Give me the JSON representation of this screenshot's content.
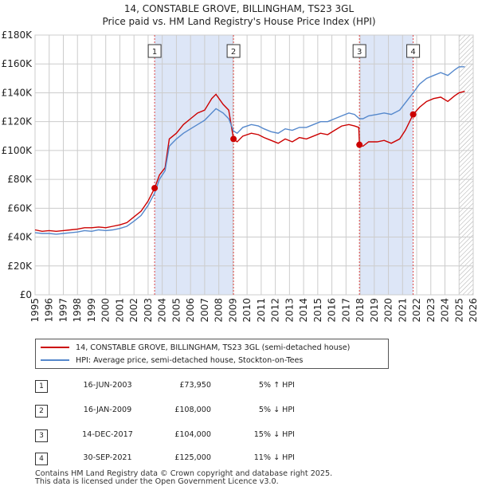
{
  "title_line1": "14, CONSTABLE GROVE, BILLINGHAM, TS23 3GL",
  "title_line2": "Price paid vs. HM Land Registry's House Price Index (HPI)",
  "colors": {
    "property": "#cc0000",
    "hpi": "#5588cc",
    "shade": "#dde6f7",
    "grid": "#cccccc"
  },
  "legend": {
    "property": "14, CONSTABLE GROVE, BILLINGHAM, TS23 3GL (semi-detached house)",
    "hpi": "HPI: Average price, semi-detached house, Stockton-on-Tees"
  },
  "sales": [
    {
      "num": "1",
      "date": "16-JUN-2003",
      "price": "£73,950",
      "hpi": "5% ↑ HPI"
    },
    {
      "num": "2",
      "date": "16-JAN-2009",
      "price": "£108,000",
      "hpi": "5% ↓ HPI"
    },
    {
      "num": "3",
      "date": "14-DEC-2017",
      "price": "£104,000",
      "hpi": "15% ↓ HPI"
    },
    {
      "num": "4",
      "date": "30-SEP-2021",
      "price": "£125,000",
      "hpi": "11% ↓ HPI"
    }
  ],
  "footer": {
    "line1": "Contains HM Land Registry data © Crown copyright and database right 2025.",
    "line2": "This data is licensed under the Open Government Licence v3.0."
  },
  "chart_data": {
    "type": "line",
    "title": "Price paid vs. HM Land Registry's House Price Index (HPI)",
    "xlabel": "",
    "ylabel": "",
    "xlim": [
      1995,
      2026
    ],
    "ylim": [
      0,
      180000
    ],
    "y_ticks": [
      {
        "value": 0,
        "label": "£0"
      },
      {
        "value": 20000,
        "label": "£20K"
      },
      {
        "value": 40000,
        "label": "£40K"
      },
      {
        "value": 60000,
        "label": "£60K"
      },
      {
        "value": 80000,
        "label": "£80K"
      },
      {
        "value": 100000,
        "label": "£100K"
      },
      {
        "value": 120000,
        "label": "£120K"
      },
      {
        "value": 140000,
        "label": "£140K"
      },
      {
        "value": 160000,
        "label": "£160K"
      },
      {
        "value": 180000,
        "label": "£180K"
      }
    ],
    "x_ticks": [
      "1995",
      "1996",
      "1997",
      "1998",
      "1999",
      "2000",
      "2001",
      "2002",
      "2003",
      "2004",
      "2005",
      "2006",
      "2007",
      "2008",
      "2009",
      "2010",
      "2011",
      "2012",
      "2013",
      "2014",
      "2015",
      "2016",
      "2017",
      "2018",
      "2019",
      "2020",
      "2021",
      "2022",
      "2023",
      "2024",
      "2025",
      "2026"
    ],
    "shaded_periods": [
      [
        2003.46,
        2009.04
      ],
      [
        2017.95,
        2021.75
      ]
    ],
    "hatched_from": 2025.0,
    "series": [
      {
        "name": "14, CONSTABLE GROVE, BILLINGHAM, TS23 3GL (semi-detached house)",
        "key": "property",
        "points": [
          [
            1995.0,
            45000
          ],
          [
            1995.5,
            44000
          ],
          [
            1996.0,
            44500
          ],
          [
            1996.5,
            44000
          ],
          [
            1997.0,
            44500
          ],
          [
            1997.5,
            45000
          ],
          [
            1998.0,
            45500
          ],
          [
            1998.5,
            46500
          ],
          [
            1999.0,
            46500
          ],
          [
            1999.5,
            47000
          ],
          [
            2000.0,
            46500
          ],
          [
            2000.5,
            47500
          ],
          [
            2001.0,
            48500
          ],
          [
            2001.5,
            50000
          ],
          [
            2002.0,
            54000
          ],
          [
            2002.5,
            58000
          ],
          [
            2003.0,
            65000
          ],
          [
            2003.46,
            73950
          ],
          [
            2003.8,
            83000
          ],
          [
            2004.2,
            88000
          ],
          [
            2004.5,
            108000
          ],
          [
            2005.0,
            112000
          ],
          [
            2005.5,
            118000
          ],
          [
            2006.0,
            122000
          ],
          [
            2006.5,
            126000
          ],
          [
            2007.0,
            128000
          ],
          [
            2007.5,
            136000
          ],
          [
            2007.8,
            139000
          ],
          [
            2008.3,
            132000
          ],
          [
            2008.7,
            128000
          ],
          [
            2009.04,
            108000
          ],
          [
            2009.3,
            106000
          ],
          [
            2009.7,
            110000
          ],
          [
            2010.3,
            112000
          ],
          [
            2010.8,
            111000
          ],
          [
            2011.2,
            109000
          ],
          [
            2011.7,
            107000
          ],
          [
            2012.2,
            105000
          ],
          [
            2012.7,
            108000
          ],
          [
            2013.2,
            106000
          ],
          [
            2013.7,
            109000
          ],
          [
            2014.2,
            108000
          ],
          [
            2014.7,
            110000
          ],
          [
            2015.2,
            112000
          ],
          [
            2015.7,
            111000
          ],
          [
            2016.2,
            114000
          ],
          [
            2016.7,
            117000
          ],
          [
            2017.2,
            118000
          ],
          [
            2017.6,
            117000
          ],
          [
            2017.9,
            116000
          ],
          [
            2017.95,
            104000
          ],
          [
            2018.2,
            103000
          ],
          [
            2018.6,
            106000
          ],
          [
            2019.2,
            106000
          ],
          [
            2019.7,
            107000
          ],
          [
            2020.2,
            105000
          ],
          [
            2020.8,
            108000
          ],
          [
            2021.2,
            114000
          ],
          [
            2021.75,
            125000
          ],
          [
            2022.2,
            130000
          ],
          [
            2022.7,
            134000
          ],
          [
            2023.2,
            136000
          ],
          [
            2023.7,
            137000
          ],
          [
            2024.2,
            134000
          ],
          [
            2024.7,
            138000
          ],
          [
            2025.0,
            140000
          ],
          [
            2025.4,
            141000
          ]
        ]
      },
      {
        "name": "HPI: Average price, semi-detached house, Stockton-on-Tees",
        "key": "hpi",
        "points": [
          [
            1995.0,
            43000
          ],
          [
            1995.5,
            42500
          ],
          [
            1996.0,
            42500
          ],
          [
            1996.5,
            42000
          ],
          [
            1997.0,
            42500
          ],
          [
            1997.5,
            43000
          ],
          [
            1998.0,
            43500
          ],
          [
            1998.5,
            44500
          ],
          [
            1999.0,
            44000
          ],
          [
            1999.5,
            45000
          ],
          [
            2000.0,
            44500
          ],
          [
            2000.5,
            45000
          ],
          [
            2001.0,
            46000
          ],
          [
            2001.5,
            47500
          ],
          [
            2002.0,
            51000
          ],
          [
            2002.5,
            55000
          ],
          [
            2003.0,
            62000
          ],
          [
            2003.46,
            70500
          ],
          [
            2003.8,
            80000
          ],
          [
            2004.2,
            86000
          ],
          [
            2004.5,
            103000
          ],
          [
            2005.0,
            108000
          ],
          [
            2005.5,
            112000
          ],
          [
            2006.0,
            115000
          ],
          [
            2006.5,
            118000
          ],
          [
            2007.0,
            121000
          ],
          [
            2007.5,
            126000
          ],
          [
            2007.8,
            129000
          ],
          [
            2008.3,
            126000
          ],
          [
            2008.7,
            122000
          ],
          [
            2009.04,
            113500
          ],
          [
            2009.3,
            112000
          ],
          [
            2009.7,
            116000
          ],
          [
            2010.3,
            118000
          ],
          [
            2010.8,
            117000
          ],
          [
            2011.2,
            115000
          ],
          [
            2011.7,
            113000
          ],
          [
            2012.2,
            112000
          ],
          [
            2012.7,
            115000
          ],
          [
            2013.2,
            114000
          ],
          [
            2013.7,
            116000
          ],
          [
            2014.2,
            116000
          ],
          [
            2014.7,
            118000
          ],
          [
            2015.2,
            120000
          ],
          [
            2015.7,
            120000
          ],
          [
            2016.2,
            122000
          ],
          [
            2016.7,
            124000
          ],
          [
            2017.2,
            126000
          ],
          [
            2017.6,
            125000
          ],
          [
            2017.95,
            122000
          ],
          [
            2018.2,
            122000
          ],
          [
            2018.6,
            124000
          ],
          [
            2019.2,
            125000
          ],
          [
            2019.7,
            126000
          ],
          [
            2020.2,
            125000
          ],
          [
            2020.8,
            128000
          ],
          [
            2021.2,
            133000
          ],
          [
            2021.75,
            140000
          ],
          [
            2022.2,
            146000
          ],
          [
            2022.7,
            150000
          ],
          [
            2023.2,
            152000
          ],
          [
            2023.7,
            154000
          ],
          [
            2024.2,
            152000
          ],
          [
            2024.7,
            156000
          ],
          [
            2025.0,
            158000
          ],
          [
            2025.4,
            158000
          ]
        ]
      }
    ],
    "sale_markers": [
      {
        "num": "1",
        "x": 2003.46,
        "y": 73950
      },
      {
        "num": "2",
        "x": 2009.04,
        "y": 108000
      },
      {
        "num": "3",
        "x": 2017.95,
        "y": 104000
      },
      {
        "num": "4",
        "x": 2021.75,
        "y": 125000
      }
    ]
  }
}
